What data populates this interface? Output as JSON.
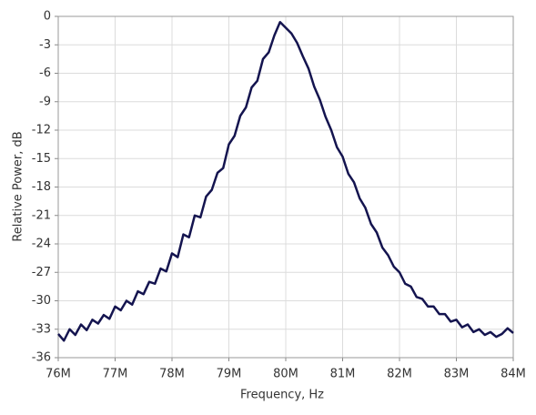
{
  "chart_data": {
    "type": "line",
    "x_label": "Frequency, Hz",
    "y_label": "Relative Power, dB",
    "x": [
      76000000,
      76100000,
      76200000,
      76300000,
      76400000,
      76500000,
      76600000,
      76700000,
      76800000,
      76900000,
      77000000,
      77100000,
      77200000,
      77300000,
      77400000,
      77500000,
      77600000,
      77700000,
      77800000,
      77900000,
      78000000,
      78100000,
      78200000,
      78300000,
      78400000,
      78500000,
      78600000,
      78700000,
      78800000,
      78900000,
      79000000,
      79100000,
      79200000,
      79300000,
      79400000,
      79500000,
      79600000,
      79700000,
      79800000,
      79900000,
      80000000,
      80100000,
      80200000,
      80300000,
      80400000,
      80500000,
      80600000,
      80700000,
      80800000,
      80900000,
      81000000,
      81100000,
      81200000,
      81300000,
      81400000,
      81500000,
      81600000,
      81700000,
      81800000,
      81900000,
      82000000,
      82100000,
      82200000,
      82300000,
      82400000,
      82500000,
      82600000,
      82700000,
      82800000,
      82900000,
      83000000,
      83100000,
      83200000,
      83300000,
      83400000,
      83500000,
      83600000,
      83700000,
      83800000,
      83900000,
      84000000
    ],
    "series": [
      {
        "name": "Relative Power",
        "color": "#14144f",
        "values": [
          -33.5,
          -34.2,
          -33.0,
          -33.6,
          -32.5,
          -33.1,
          -32.0,
          -32.4,
          -31.5,
          -31.9,
          -30.6,
          -31.0,
          -30.0,
          -30.4,
          -29.0,
          -29.3,
          -28.0,
          -28.2,
          -26.6,
          -26.9,
          -25.0,
          -25.4,
          -23.0,
          -23.3,
          -21.0,
          -21.2,
          -19.0,
          -18.3,
          -16.5,
          -16.0,
          -13.5,
          -12.6,
          -10.5,
          -9.6,
          -7.5,
          -6.8,
          -4.5,
          -3.8,
          -2.0,
          -0.6,
          -1.2,
          -1.8,
          -2.8,
          -4.2,
          -5.5,
          -7.4,
          -8.8,
          -10.6,
          -12.0,
          -13.8,
          -14.8,
          -16.6,
          -17.5,
          -19.2,
          -20.2,
          -21.9,
          -22.8,
          -24.4,
          -25.2,
          -26.4,
          -27.0,
          -28.2,
          -28.5,
          -29.6,
          -29.8,
          -30.6,
          -30.6,
          -31.4,
          -31.4,
          -32.2,
          -32.0,
          -32.8,
          -32.5,
          -33.3,
          -33.0,
          -33.6,
          -33.3,
          -33.8,
          -33.5,
          -32.9,
          -33.4
        ]
      }
    ],
    "xlim": [
      76000000,
      84000000
    ],
    "xticks": [
      {
        "value": 76000000,
        "label": "76M"
      },
      {
        "value": 77000000,
        "label": "77M"
      },
      {
        "value": 78000000,
        "label": "78M"
      },
      {
        "value": 79000000,
        "label": "79M"
      },
      {
        "value": 80000000,
        "label": "80M"
      },
      {
        "value": 81000000,
        "label": "81M"
      },
      {
        "value": 82000000,
        "label": "82M"
      },
      {
        "value": 83000000,
        "label": "83M"
      },
      {
        "value": 84000000,
        "label": "84M"
      }
    ],
    "ylim": [
      -36,
      0
    ],
    "yticks": [
      0,
      -3,
      -6,
      -9,
      -12,
      -15,
      -18,
      -21,
      -24,
      -27,
      -30,
      -33,
      -36
    ],
    "grid": true
  }
}
